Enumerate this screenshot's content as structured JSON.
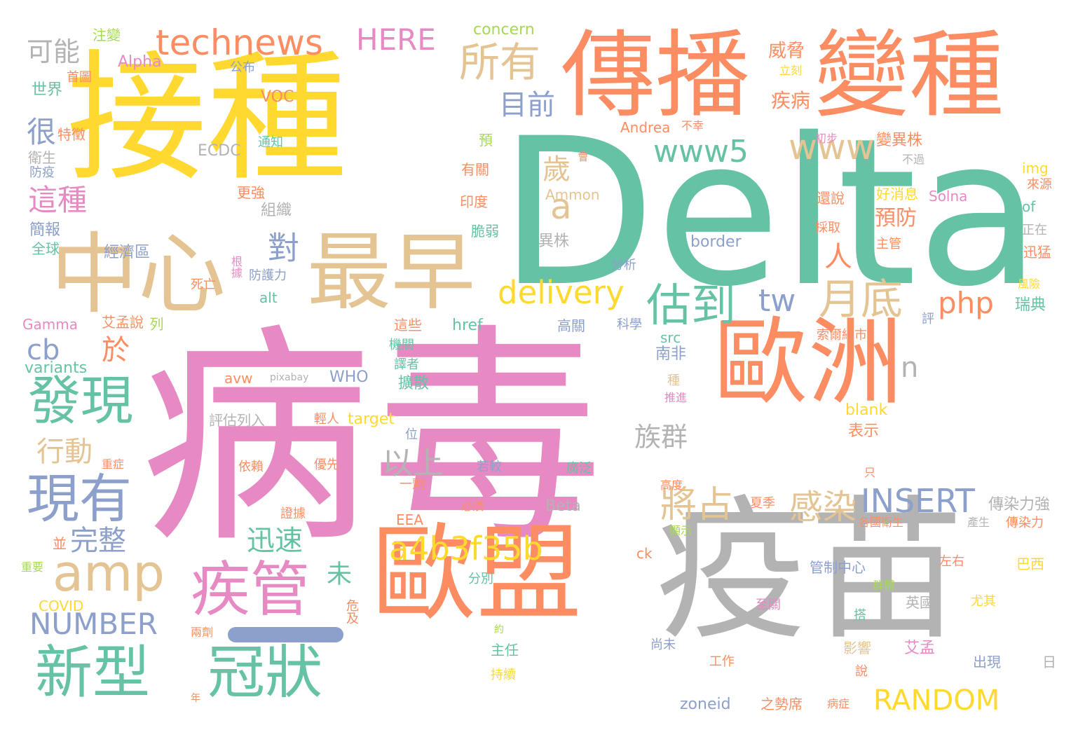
{
  "palette": {
    "green": "#66c2a5",
    "orange": "#fc8d62",
    "blue": "#8da0cb",
    "pink": "#e78ac3",
    "lime": "#a6d854",
    "yellow": "#ffd92f",
    "tan": "#e5c494",
    "gray": "#b3b3b3"
  },
  "words": [
    {
      "text": "Delta",
      "c": "green"
    },
    {
      "text": "病毒",
      "c": "pink"
    },
    {
      "text": "接種",
      "c": "yellow"
    },
    {
      "text": "疫苗",
      "c": "gray"
    },
    {
      "text": "傳播",
      "c": "orange"
    },
    {
      "text": "變種",
      "c": "orange"
    },
    {
      "text": "歐洲",
      "c": "orange"
    },
    {
      "text": "歐盟",
      "c": "orange"
    },
    {
      "text": "中心",
      "c": "tan"
    },
    {
      "text": "最早",
      "c": "tan"
    },
    {
      "text": "technews",
      "c": "orange"
    },
    {
      "text": "HERE",
      "c": "pink"
    },
    {
      "text": "concern",
      "c": "lime"
    },
    {
      "text": "可能",
      "c": "gray"
    },
    {
      "text": "所有",
      "c": "tan"
    },
    {
      "text": "目前",
      "c": "blue"
    },
    {
      "text": "www5",
      "c": "green"
    },
    {
      "text": "www",
      "c": "tan"
    },
    {
      "text": "a",
      "c": "tan"
    },
    {
      "text": "delivery",
      "c": "yellow"
    },
    {
      "text": "估到",
      "c": "green"
    },
    {
      "text": "tw",
      "c": "blue"
    },
    {
      "text": "月底",
      "c": "tan"
    },
    {
      "text": "php",
      "c": "orange"
    },
    {
      "text": "amp",
      "c": "tan"
    },
    {
      "text": "疾管",
      "c": "pink"
    },
    {
      "text": "發現",
      "c": "green"
    },
    {
      "text": "現有",
      "c": "blue"
    },
    {
      "text": "新型",
      "c": "green"
    },
    {
      "text": "冠狀",
      "c": "green"
    },
    {
      "text": "a4b3f35b",
      "c": "yellow"
    },
    {
      "text": "INSERT",
      "c": "blue"
    },
    {
      "text": "RANDOM",
      "c": "yellow"
    },
    {
      "text": "NUMBER",
      "c": "blue"
    },
    {
      "text": "將占",
      "c": "tan"
    },
    {
      "text": "感染",
      "c": "tan"
    },
    {
      "text": "迅速",
      "c": "green"
    },
    {
      "text": "以上",
      "c": "gray"
    },
    {
      "text": "族群",
      "c": "gray"
    },
    {
      "text": "行動",
      "c": "tan"
    },
    {
      "text": "完整",
      "c": "blue"
    },
    {
      "text": "這種",
      "c": "pink"
    },
    {
      "text": "很",
      "c": "blue"
    },
    {
      "text": "cb",
      "c": "blue"
    },
    {
      "text": "於",
      "c": "orange"
    },
    {
      "text": "歲",
      "c": "tan"
    },
    {
      "text": "對",
      "c": "blue"
    },
    {
      "text": "人",
      "c": "orange"
    },
    {
      "text": "預防",
      "c": "orange"
    },
    {
      "text": "疾病",
      "c": "orange"
    },
    {
      "text": "威脅",
      "c": "orange"
    },
    {
      "text": "變異株",
      "c": "orange"
    },
    {
      "text": "Alpha",
      "c": "pink"
    },
    {
      "text": "注變",
      "c": "lime"
    },
    {
      "text": "首圖",
      "c": "orange"
    },
    {
      "text": "公布",
      "c": "blue"
    },
    {
      "text": "世界",
      "c": "green"
    },
    {
      "text": "VOC",
      "c": "orange"
    },
    {
      "text": "特徵",
      "c": "orange"
    },
    {
      "text": "通知",
      "c": "green"
    },
    {
      "text": "ECDC",
      "c": "gray"
    },
    {
      "text": "衛生",
      "c": "gray"
    },
    {
      "text": "防疫",
      "c": "blue"
    },
    {
      "text": "Andrea",
      "c": "orange"
    },
    {
      "text": "不幸",
      "c": "orange"
    },
    {
      "text": "Ammon",
      "c": "tan"
    },
    {
      "text": "組織",
      "c": "gray"
    },
    {
      "text": "更強",
      "c": "orange"
    },
    {
      "text": "簡報",
      "c": "blue"
    },
    {
      "text": "全球",
      "c": "green"
    },
    {
      "text": "經濟區",
      "c": "blue"
    },
    {
      "text": "根據",
      "c": "pink"
    },
    {
      "text": "死亡",
      "c": "orange"
    },
    {
      "text": "防護力",
      "c": "blue"
    },
    {
      "text": "alt",
      "c": "green"
    },
    {
      "text": "Gamma",
      "c": "pink"
    },
    {
      "text": "艾孟說",
      "c": "orange"
    },
    {
      "text": "列",
      "c": "lime"
    },
    {
      "text": "variants",
      "c": "green"
    },
    {
      "text": "avw",
      "c": "orange"
    },
    {
      "text": "pixabay",
      "c": "gray"
    },
    {
      "text": "WHO",
      "c": "blue"
    },
    {
      "text": "評估列入",
      "c": "gray"
    },
    {
      "text": "輕人",
      "c": "orange"
    },
    {
      "text": "target",
      "c": "yellow"
    },
    {
      "text": "位",
      "c": "blue"
    },
    {
      "text": "重症",
      "c": "orange"
    },
    {
      "text": "依賴",
      "c": "orange"
    },
    {
      "text": "優先",
      "c": "orange"
    },
    {
      "text": "若較",
      "c": "blue"
    },
    {
      "text": "廣泛",
      "c": "green"
    },
    {
      "text": "一劑",
      "c": "orange"
    },
    {
      "text": "必須",
      "c": "orange"
    },
    {
      "text": "Beta",
      "c": "gray"
    },
    {
      "text": "EEA",
      "c": "orange"
    },
    {
      "text": "證據",
      "c": "orange"
    },
    {
      "text": "並",
      "c": "orange"
    },
    {
      "text": "重要",
      "c": "lime"
    },
    {
      "text": "COVID",
      "c": "yellow"
    },
    {
      "text": "兩劑",
      "c": "orange"
    },
    {
      "text": "危及",
      "c": "orange"
    },
    {
      "text": "分別",
      "c": "green"
    },
    {
      "text": "主任",
      "c": "green"
    },
    {
      "text": "約",
      "c": "lime"
    },
    {
      "text": "持續",
      "c": "yellow"
    },
    {
      "text": "年",
      "c": "orange"
    },
    {
      "text": "zoneid",
      "c": "blue"
    },
    {
      "text": "之勢席",
      "c": "orange"
    },
    {
      "text": "病症",
      "c": "orange"
    },
    {
      "text": "src",
      "c": "green"
    },
    {
      "text": "南非",
      "c": "blue"
    },
    {
      "text": "擴散",
      "c": "green"
    },
    {
      "text": "譯者",
      "c": "green"
    },
    {
      "text": "機關",
      "c": "green"
    },
    {
      "text": "這些",
      "c": "orange"
    },
    {
      "text": "href",
      "c": "green"
    },
    {
      "text": "高關",
      "c": "blue"
    },
    {
      "text": "科學",
      "c": "blue"
    },
    {
      "text": "分析",
      "c": "blue"
    },
    {
      "text": "border",
      "c": "blue"
    },
    {
      "text": "異株",
      "c": "gray"
    },
    {
      "text": "脆弱",
      "c": "green"
    },
    {
      "text": "印度",
      "c": "orange"
    },
    {
      "text": "有關",
      "c": "orange"
    },
    {
      "text": "預",
      "c": "lime"
    },
    {
      "text": "會",
      "c": "orange"
    },
    {
      "text": "立刻",
      "c": "yellow"
    },
    {
      "text": "初步",
      "c": "pink"
    },
    {
      "text": "不過",
      "c": "gray"
    },
    {
      "text": "img",
      "c": "yellow"
    },
    {
      "text": "來源",
      "c": "orange"
    },
    {
      "text": "好消息",
      "c": "yellow"
    },
    {
      "text": "還說",
      "c": "orange"
    },
    {
      "text": "Solna",
      "c": "pink"
    },
    {
      "text": "of",
      "c": "green"
    },
    {
      "text": "採取",
      "c": "orange"
    },
    {
      "text": "正在",
      "c": "gray"
    },
    {
      "text": "主管",
      "c": "orange"
    },
    {
      "text": "迅猛",
      "c": "orange"
    },
    {
      "text": "風險",
      "c": "yellow"
    },
    {
      "text": "瑞典",
      "c": "green"
    },
    {
      "text": "評",
      "c": "blue"
    },
    {
      "text": "索爾納市",
      "c": "orange"
    },
    {
      "text": "blank",
      "c": "yellow"
    },
    {
      "text": "n",
      "c": "gray"
    },
    {
      "text": "表示",
      "c": "orange"
    },
    {
      "text": "只",
      "c": "orange"
    },
    {
      "text": "高度",
      "c": "orange"
    },
    {
      "text": "推進",
      "c": "pink"
    },
    {
      "text": "種",
      "c": "tan"
    },
    {
      "text": "傳染力強",
      "c": "gray"
    },
    {
      "text": "夏季",
      "c": "orange"
    },
    {
      "text": "各國衛生",
      "c": "orange"
    },
    {
      "text": "產生",
      "c": "gray"
    },
    {
      "text": "傳染力",
      "c": "orange"
    },
    {
      "text": "顯示",
      "c": "lime"
    },
    {
      "text": "管制中心",
      "c": "blue"
    },
    {
      "text": "左右",
      "c": "orange"
    },
    {
      "text": "巴西",
      "c": "yellow"
    },
    {
      "text": "ck",
      "c": "orange"
    },
    {
      "text": "群體",
      "c": "lime"
    },
    {
      "text": "至關",
      "c": "pink"
    },
    {
      "text": "英國",
      "c": "gray"
    },
    {
      "text": "尤其",
      "c": "yellow"
    },
    {
      "text": "搭",
      "c": "green"
    },
    {
      "text": "艾孟",
      "c": "pink"
    },
    {
      "text": "尚未",
      "c": "blue"
    },
    {
      "text": "影響",
      "c": "tan"
    },
    {
      "text": "出現",
      "c": "blue"
    },
    {
      "text": "日",
      "c": "gray"
    },
    {
      "text": "工作",
      "c": "orange"
    },
    {
      "text": "說",
      "c": "orange"
    },
    {
      "text": "未",
      "c": "green"
    }
  ]
}
